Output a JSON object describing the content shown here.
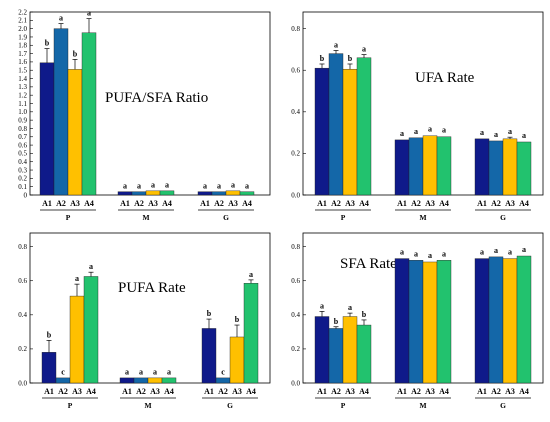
{
  "colors": {
    "A1": "#0f1a8a",
    "A2": "#1467a8",
    "A3": "#ffc000",
    "A4": "#22c26e"
  },
  "chart_data": [
    {
      "type": "bar",
      "title": "PUFA/SFA Ratio",
      "subcategories": [
        "A1",
        "A2",
        "A3",
        "A4"
      ],
      "groups": [
        "P",
        "M",
        "G"
      ],
      "ylim": [
        0,
        2.2
      ],
      "yticks": [
        "0",
        "0.1",
        "0.2",
        "0.3",
        "0.4",
        "0.5",
        "0.6",
        "0.7",
        "0.8",
        "0.9",
        "1.0",
        "1.1",
        "1.2",
        "1.3",
        "1.4",
        "1.5",
        "1.6",
        "1.7",
        "1.8",
        "1.9",
        "2.0",
        "2.1",
        "2.2"
      ],
      "values": [
        [
          1.59,
          2.0,
          1.51,
          1.95
        ],
        [
          0.04,
          0.04,
          0.05,
          0.05
        ],
        [
          0.04,
          0.04,
          0.05,
          0.04
        ]
      ],
      "errors": [
        [
          0.17,
          0.06,
          0.12,
          0.17
        ],
        [
          0.005,
          0.005,
          0.005,
          0.005
        ],
        [
          0.005,
          0.005,
          0.005,
          0.005
        ]
      ],
      "letters": [
        [
          "b",
          "a",
          "b",
          "a"
        ],
        [
          "a",
          "a",
          "a",
          "a"
        ],
        [
          "a",
          "a",
          "a",
          "a"
        ]
      ]
    },
    {
      "type": "bar",
      "title": "UFA Rate",
      "subcategories": [
        "A1",
        "A2",
        "A3",
        "A4"
      ],
      "groups": [
        "P",
        "M",
        "G"
      ],
      "ylim": [
        0,
        0.88
      ],
      "yticks": [
        "0.0",
        "0.2",
        "0.4",
        "0.6",
        "0.8"
      ],
      "values": [
        [
          0.61,
          0.68,
          0.605,
          0.66
        ],
        [
          0.265,
          0.275,
          0.285,
          0.28
        ],
        [
          0.27,
          0.26,
          0.27,
          0.255
        ]
      ],
      "errors": [
        [
          0.02,
          0.015,
          0.025,
          0.015
        ],
        [
          0.005,
          0.005,
          0.005,
          0.005
        ],
        [
          0.005,
          0.005,
          0.008,
          0.005
        ]
      ],
      "letters": [
        [
          "b",
          "a",
          "b",
          "a"
        ],
        [
          "a",
          "a",
          "a",
          "a"
        ],
        [
          "a",
          "a",
          "a",
          "a"
        ]
      ]
    },
    {
      "type": "bar",
      "title": "PUFA Rate",
      "subcategories": [
        "A1",
        "A2",
        "A3",
        "A4"
      ],
      "groups": [
        "P",
        "M",
        "G"
      ],
      "ylim": [
        0,
        0.88
      ],
      "yticks": [
        "0.0",
        "0.2",
        "0.4",
        "0.6",
        "0.8"
      ],
      "values": [
        [
          0.18,
          0.03,
          0.51,
          0.625
        ],
        [
          0.03,
          0.03,
          0.03,
          0.03
        ],
        [
          0.32,
          0.03,
          0.27,
          0.585
        ]
      ],
      "errors": [
        [
          0.07,
          0.003,
          0.07,
          0.025
        ],
        [
          0.003,
          0.003,
          0.003,
          0.003
        ],
        [
          0.055,
          0.003,
          0.07,
          0.02
        ]
      ],
      "letters": [
        [
          "b",
          "c",
          "a",
          "a"
        ],
        [
          "a",
          "a",
          "a",
          "a"
        ],
        [
          "b",
          "c",
          "b",
          "a"
        ]
      ]
    },
    {
      "type": "bar",
      "title": "SFA Rate",
      "subcategories": [
        "A1",
        "A2",
        "A3",
        "A4"
      ],
      "groups": [
        "P",
        "M",
        "G"
      ],
      "ylim": [
        0,
        0.88
      ],
      "yticks": [
        "0.0",
        "0.2",
        "0.4",
        "0.6",
        "0.8"
      ],
      "values": [
        [
          0.39,
          0.32,
          0.39,
          0.34
        ],
        [
          0.73,
          0.72,
          0.71,
          0.72
        ],
        [
          0.73,
          0.74,
          0.73,
          0.745
        ]
      ],
      "errors": [
        [
          0.03,
          0.01,
          0.02,
          0.03
        ],
        [
          0.005,
          0.005,
          0.005,
          0.005
        ],
        [
          0.005,
          0.005,
          0.005,
          0.005
        ]
      ],
      "letters": [
        [
          "a",
          "b",
          "a",
          "b"
        ],
        [
          "a",
          "a",
          "a",
          "a"
        ],
        [
          "a",
          "a",
          "a",
          "a"
        ]
      ]
    }
  ]
}
